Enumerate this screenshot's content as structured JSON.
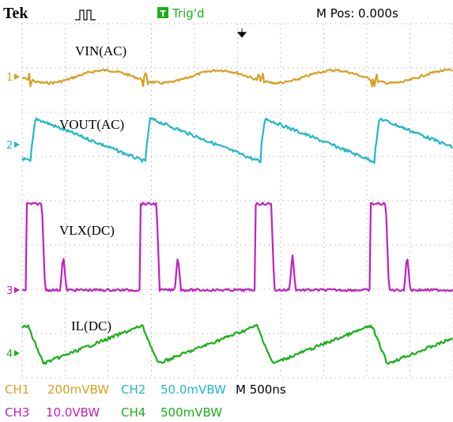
{
  "header": {
    "brand": "Tek",
    "trigger_badge": "T",
    "trigger_status": "Trig'd",
    "position": "M Pos: 0.000s"
  },
  "traces": [
    {
      "marker": "1",
      "label": "VIN(AC)"
    },
    {
      "marker": "2",
      "label": "VOUT(AC)"
    },
    {
      "marker": "3",
      "label": "VLX(DC)"
    },
    {
      "marker": "4",
      "label": "IL(DC)"
    }
  ],
  "footer": {
    "ch1": {
      "name": "CH1",
      "scale": "200mVBW"
    },
    "ch2": {
      "name": "CH2",
      "scale": "50.0mVBW"
    },
    "timebase": "M 500ns",
    "ch3": {
      "name": "CH3",
      "scale": "10.0VBW"
    },
    "ch4": {
      "name": "CH4",
      "scale": "500mVBW"
    }
  }
}
